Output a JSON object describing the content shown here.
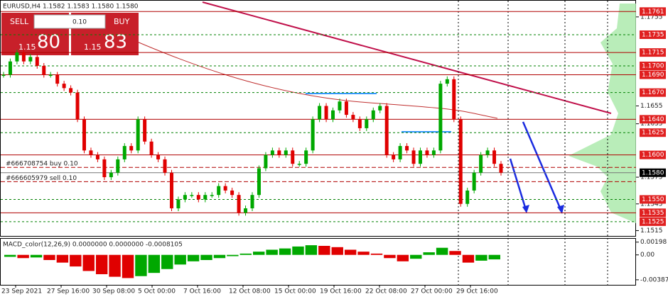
{
  "header": "EURUSD,H4  1.1582 1.1583 1.1580 1.1580",
  "trade_panel": {
    "sell": "SELL",
    "lot": "0.10",
    "buy": "BUY",
    "bid_big": "1.15",
    "bid": "80",
    "ask_big": "1.15",
    "ask": "83"
  },
  "chart_data": [
    {
      "type": "candlestick",
      "up_color": "#00a800",
      "down_color": "#e00000",
      "x_labels": [
        "23 Sep 2021",
        "27 Sep 16:00",
        "30 Sep 08:00",
        "5 Oct 00:00",
        "7 Oct 16:00",
        "12 Oct 08:00",
        "15 Oct 00:00",
        "19 Oct 16:00",
        "22 Oct 08:00",
        "27 Oct 00:00",
        "29 Oct 16:00"
      ],
      "values": [
        1.169,
        1.1705,
        1.1715,
        1.1705,
        1.171,
        1.17,
        1.169,
        1.169,
        1.168,
        1.1675,
        1.167,
        1.164,
        1.1605,
        1.16,
        1.1595,
        1.1575,
        1.158,
        1.1595,
        1.161,
        1.1605,
        1.164,
        1.1615,
        1.16,
        1.1595,
        1.158,
        1.154,
        1.155,
        1.1555,
        1.1555,
        1.155,
        1.1555,
        1.1555,
        1.1565,
        1.156,
        1.1555,
        1.1535,
        1.154,
        1.1555,
        1.1585,
        1.16,
        1.1605,
        1.16,
        1.1605,
        1.159,
        1.159,
        1.1605,
        1.164,
        1.1655,
        1.164,
        1.165,
        1.166,
        1.1645,
        1.164,
        1.163,
        1.164,
        1.165,
        1.1655,
        1.16,
        1.1595,
        1.161,
        1.1605,
        1.159,
        1.1605,
        1.16,
        1.1605,
        1.168,
        1.1685,
        1.164,
        1.1545,
        1.156,
        1.158,
        1.16,
        1.1605,
        1.159,
        1.158
      ],
      "ylim": [
        1.1509,
        1.177
      ],
      "yticks": [
        1.1755,
        1.1655,
        1.1635,
        1.1575,
        1.1545,
        1.1515
      ],
      "levels": [
        {
          "value": 1.1761,
          "label": "1.1761"
        },
        {
          "value": 1.1735,
          "label": "1.1735"
        },
        {
          "value": 1.1715,
          "label": "1.1715"
        },
        {
          "value": 1.17,
          "label": "1.1700"
        },
        {
          "value": 1.169,
          "label": "1.1690"
        },
        {
          "value": 1.167,
          "label": "1.1670"
        },
        {
          "value": 1.164,
          "label": "1.1640"
        },
        {
          "value": 1.1625,
          "label": "1.1625"
        },
        {
          "value": 1.16,
          "label": "1.1600"
        },
        {
          "value": 1.155,
          "label": "1.1550"
        },
        {
          "value": 1.1535,
          "label": "1.1535"
        },
        {
          "value": 1.1525,
          "label": "1.1525"
        }
      ],
      "current_price": {
        "value": 1.158,
        "label": "1.1580"
      },
      "orders": [
        {
          "value": 1.1586,
          "label": "#666708754 buy 0.10"
        },
        {
          "value": 1.157,
          "label": "#666605979 sell 0.10"
        }
      ]
    },
    {
      "type": "macd",
      "label": "MACD_color(12,26,9) 0.0000000 0.0000000 -0.0008105",
      "up_color": "#00a800",
      "down_color": "#e00000",
      "values": [
        -0.0003,
        -0.0005,
        -0.0004,
        -0.0008,
        -0.0012,
        -0.0018,
        -0.0025,
        -0.003,
        -0.0034,
        -0.0036,
        -0.0033,
        -0.0028,
        -0.0022,
        -0.0015,
        -0.001,
        -0.0008,
        -0.0005,
        -0.0002,
        0.0002,
        0.0005,
        0.0008,
        0.001,
        0.0013,
        0.0015,
        0.0014,
        0.0012,
        0.0008,
        0.0005,
        0.0002,
        -0.0005,
        -0.001,
        -0.0006,
        0.0004,
        0.0011,
        0.0006,
        -0.0012,
        -0.0009,
        -0.0007
      ],
      "ylim": [
        -0.00465,
        0.0025
      ],
      "yticks": [
        0.00198,
        {
          "value": 0,
          "label": "0.00"
        },
        -0.00387
      ]
    }
  ]
}
